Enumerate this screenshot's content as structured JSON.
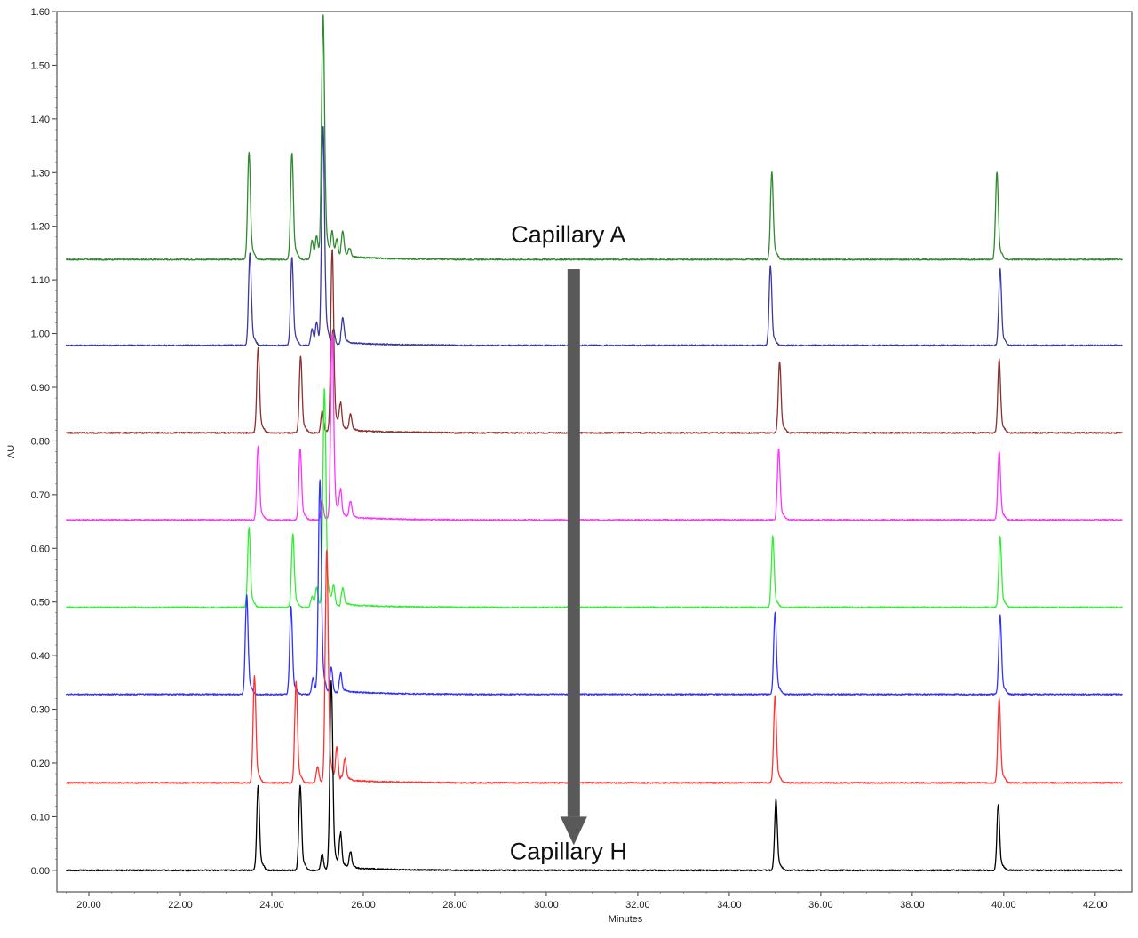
{
  "chart_data": {
    "type": "line",
    "title": "",
    "xlabel": "Minutes",
    "ylabel": "AU",
    "xlim": [
      19.3,
      42.8
    ],
    "ylim": [
      -0.04,
      1.6
    ],
    "x_ticks": [
      "20.00",
      "22.00",
      "24.00",
      "26.00",
      "28.00",
      "30.00",
      "32.00",
      "34.00",
      "36.00",
      "38.00",
      "40.00",
      "42.00"
    ],
    "y_ticks": [
      "0.00",
      "0.10",
      "0.20",
      "0.30",
      "0.40",
      "0.50",
      "0.60",
      "0.70",
      "0.80",
      "0.90",
      "1.00",
      "1.10",
      "1.20",
      "1.30",
      "1.40",
      "1.50",
      "1.60"
    ],
    "grid": false,
    "legend": "none",
    "annotations": [
      {
        "text": "Capillary A",
        "x": 30.6,
        "y": 1.17
      },
      {
        "text": "Capillary H",
        "x": 30.6,
        "y": 0.02
      }
    ],
    "arrow": {
      "from": [
        30.6,
        1.12
      ],
      "to": [
        30.6,
        0.1
      ],
      "color": "#595959"
    },
    "series": [
      {
        "color": "#2e8b2e",
        "start_x": 19.5,
        "baseline": 1.138,
        "peaks": [
          {
            "x": 23.5,
            "h": 0.195
          },
          {
            "x": 24.44,
            "h": 0.195
          },
          {
            "x": 24.88,
            "h": 0.035
          },
          {
            "x": 24.98,
            "h": 0.04
          },
          {
            "x": 25.12,
            "h": 0.445
          },
          {
            "x": 25.32,
            "h": 0.05
          },
          {
            "x": 25.42,
            "h": 0.035
          },
          {
            "x": 25.55,
            "h": 0.045
          },
          {
            "x": 25.7,
            "h": 0.015
          },
          {
            "x": 34.93,
            "h": 0.16
          },
          {
            "x": 39.85,
            "h": 0.16
          }
        ]
      },
      {
        "color": "#3a3aa0",
        "start_x": 19.5,
        "baseline": 0.978,
        "peaks": [
          {
            "x": 23.52,
            "h": 0.17
          },
          {
            "x": 24.44,
            "h": 0.16
          },
          {
            "x": 24.88,
            "h": 0.03
          },
          {
            "x": 24.98,
            "h": 0.04
          },
          {
            "x": 25.12,
            "h": 0.4
          },
          {
            "x": 25.35,
            "h": 0.03
          },
          {
            "x": 25.55,
            "h": 0.045
          },
          {
            "x": 34.9,
            "h": 0.145
          },
          {
            "x": 39.92,
            "h": 0.14
          }
        ]
      },
      {
        "color": "#8b2f2f",
        "start_x": 19.5,
        "baseline": 0.815,
        "peaks": [
          {
            "x": 23.7,
            "h": 0.155
          },
          {
            "x": 24.63,
            "h": 0.14
          },
          {
            "x": 25.1,
            "h": 0.04
          },
          {
            "x": 25.32,
            "h": 0.335
          },
          {
            "x": 25.5,
            "h": 0.05
          },
          {
            "x": 25.72,
            "h": 0.03
          },
          {
            "x": 35.1,
            "h": 0.13
          },
          {
            "x": 39.9,
            "h": 0.135
          }
        ]
      },
      {
        "color": "#ff33ff",
        "start_x": 19.5,
        "baseline": 0.653,
        "peaks": [
          {
            "x": 23.7,
            "h": 0.135
          },
          {
            "x": 24.62,
            "h": 0.13
          },
          {
            "x": 25.1,
            "h": 0.035
          },
          {
            "x": 25.32,
            "h": 0.34
          },
          {
            "x": 25.5,
            "h": 0.05
          },
          {
            "x": 25.72,
            "h": 0.03
          },
          {
            "x": 35.08,
            "h": 0.13
          },
          {
            "x": 39.9,
            "h": 0.125
          }
        ]
      },
      {
        "color": "#33ee33",
        "start_x": 19.5,
        "baseline": 0.49,
        "peaks": [
          {
            "x": 23.5,
            "h": 0.145
          },
          {
            "x": 24.46,
            "h": 0.135
          },
          {
            "x": 24.88,
            "h": 0.02
          },
          {
            "x": 24.98,
            "h": 0.035
          },
          {
            "x": 25.15,
            "h": 0.4
          },
          {
            "x": 25.35,
            "h": 0.04
          },
          {
            "x": 25.55,
            "h": 0.03
          },
          {
            "x": 34.95,
            "h": 0.13
          },
          {
            "x": 39.92,
            "h": 0.13
          }
        ]
      },
      {
        "color": "#3333ff",
        "start_x": 19.5,
        "baseline": 0.328,
        "peaks": [
          {
            "x": 23.45,
            "h": 0.18
          },
          {
            "x": 24.42,
            "h": 0.16
          },
          {
            "x": 24.9,
            "h": 0.03
          },
          {
            "x": 25.05,
            "h": 0.39
          },
          {
            "x": 25.3,
            "h": 0.05
          },
          {
            "x": 25.5,
            "h": 0.035
          },
          {
            "x": 35.0,
            "h": 0.15
          },
          {
            "x": 39.92,
            "h": 0.145
          }
        ]
      },
      {
        "color": "#ff3333",
        "start_x": 19.5,
        "baseline": 0.163,
        "peaks": [
          {
            "x": 23.62,
            "h": 0.195
          },
          {
            "x": 24.53,
            "h": 0.185
          },
          {
            "x": 25.0,
            "h": 0.03
          },
          {
            "x": 25.2,
            "h": 0.425
          },
          {
            "x": 25.42,
            "h": 0.065
          },
          {
            "x": 25.6,
            "h": 0.04
          },
          {
            "x": 35.0,
            "h": 0.16
          },
          {
            "x": 39.9,
            "h": 0.155
          }
        ]
      },
      {
        "color": "#000000",
        "start_x": 19.5,
        "baseline": 0.0,
        "peaks": [
          {
            "x": 23.7,
            "h": 0.155
          },
          {
            "x": 24.62,
            "h": 0.155
          },
          {
            "x": 25.1,
            "h": 0.03
          },
          {
            "x": 25.3,
            "h": 0.345
          },
          {
            "x": 25.5,
            "h": 0.065
          },
          {
            "x": 25.72,
            "h": 0.03
          },
          {
            "x": 35.02,
            "h": 0.13
          },
          {
            "x": 39.88,
            "h": 0.12
          }
        ]
      }
    ]
  }
}
